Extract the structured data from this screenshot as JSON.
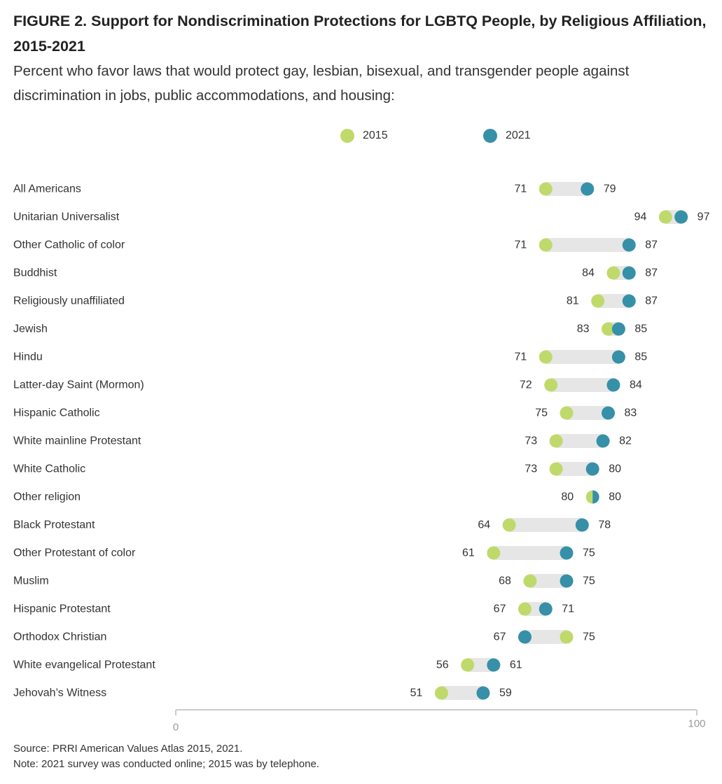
{
  "title": "FIGURE 2.  Support for Nondiscrimination Protections for LGBTQ People, by Religious Affiliation, 2015-2021",
  "subtitle": "Percent who favor laws that would protect gay, lesbian, bisexual, and transgender people against discrimination in jobs, public accommodations, and housing:",
  "legend": [
    {
      "label": "2015",
      "color": "#c0d96b"
    },
    {
      "label": "2021",
      "color": "#3690a8"
    }
  ],
  "source": "Source: PRRI American Values Atlas 2015, 2021.",
  "note": "Note: 2021 survey was conducted online; 2015 was by telephone.",
  "chart_data": {
    "type": "dumbbell",
    "categories": [
      "All Americans",
      "Unitarian Universalist",
      "Other Catholic of color",
      "Buddhist",
      "Religiously unaffiliated",
      "Jewish",
      "Hindu",
      "Latter-day Saint (Mormon)",
      "Hispanic Catholic",
      "White mainline Protestant",
      "White Catholic",
      "Other religion",
      "Black Protestant",
      "Other Protestant of color",
      "Muslim",
      "Hispanic Protestant",
      "Orthodox Christian",
      "White evangelical Protestant",
      "Jehovah’s Witness"
    ],
    "series": [
      {
        "name": "2015",
        "values": [
          71,
          94,
          71,
          84,
          81,
          83,
          71,
          72,
          75,
          73,
          73,
          80,
          64,
          61,
          68,
          67,
          75,
          56,
          51
        ]
      },
      {
        "name": "2021",
        "values": [
          79,
          97,
          87,
          87,
          87,
          85,
          85,
          84,
          83,
          82,
          80,
          80,
          78,
          75,
          75,
          71,
          67,
          61,
          59
        ]
      }
    ],
    "xlim": [
      0,
      100
    ],
    "xticks": [
      "0",
      "100"
    ],
    "colors": {
      "2015": "#c0d96b",
      "2021": "#3690a8",
      "range": "#e6e6e6",
      "axis": "#cccccc"
    }
  }
}
